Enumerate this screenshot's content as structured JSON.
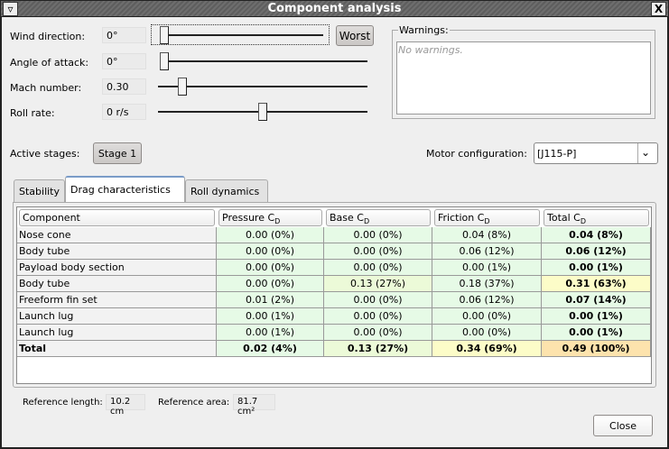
{
  "window": {
    "title": "Component analysis",
    "menu_icon": "triangle-down-icon",
    "close_icon": "x-icon"
  },
  "conditions": [
    {
      "label": "Wind direction:",
      "value": "0°",
      "slider_fraction": 0.0
    },
    {
      "label": "Angle of attack:",
      "value": "0°",
      "slider_fraction": 0.0
    },
    {
      "label": "Mach number:",
      "value": "0.30",
      "slider_fraction": 0.1
    },
    {
      "label": "Roll rate:",
      "value": "0 r/s",
      "slider_fraction": 0.5
    }
  ],
  "worst_button": "Worst",
  "warnings": {
    "label": "Warnings:",
    "text": "No warnings."
  },
  "stages": {
    "label": "Active stages:",
    "button": "Stage 1"
  },
  "motor": {
    "label": "Motor configuration:",
    "value": "[J115-P]"
  },
  "tabs": [
    {
      "label": "Stability",
      "active": false
    },
    {
      "label": "Drag characteristics",
      "active": true
    },
    {
      "label": "Roll dynamics",
      "active": false
    }
  ],
  "colors": {
    "g": "#e6fae6",
    "lg": "#ecfad8",
    "y": "#fcfcc8",
    "o": "#fde3ad",
    "name": "#f2f2f2"
  },
  "table": {
    "headers": [
      {
        "t": "Component",
        "s": ""
      },
      {
        "t": "Pressure C",
        "s": "D"
      },
      {
        "t": "Base C",
        "s": "D"
      },
      {
        "t": "Friction C",
        "s": "D"
      },
      {
        "t": "Total C",
        "s": "D"
      }
    ],
    "rows": [
      {
        "name": "Nose cone",
        "cells": [
          [
            "0.00 (0%)",
            "g"
          ],
          [
            "0.00 (0%)",
            "g"
          ],
          [
            "0.04 (8%)",
            "g"
          ],
          [
            "0.04 (8%)",
            "g"
          ]
        ]
      },
      {
        "name": "Body tube",
        "cells": [
          [
            "0.00 (0%)",
            "g"
          ],
          [
            "0.00 (0%)",
            "g"
          ],
          [
            "0.06 (12%)",
            "g"
          ],
          [
            "0.06 (12%)",
            "g"
          ]
        ]
      },
      {
        "name": "Payload body section",
        "cells": [
          [
            "0.00 (0%)",
            "g"
          ],
          [
            "0.00 (0%)",
            "g"
          ],
          [
            "0.00 (1%)",
            "g"
          ],
          [
            "0.00 (1%)",
            "g"
          ]
        ]
      },
      {
        "name": "Body tube",
        "cells": [
          [
            "0.00 (0%)",
            "g"
          ],
          [
            "0.13 (27%)",
            "lg"
          ],
          [
            "0.18 (37%)",
            "g"
          ],
          [
            "0.31 (63%)",
            "y"
          ]
        ]
      },
      {
        "name": "Freeform fin set",
        "cells": [
          [
            "0.01 (2%)",
            "g"
          ],
          [
            "0.00 (0%)",
            "g"
          ],
          [
            "0.06 (12%)",
            "g"
          ],
          [
            "0.07 (14%)",
            "g"
          ]
        ]
      },
      {
        "name": "Launch lug",
        "cells": [
          [
            "0.00 (1%)",
            "g"
          ],
          [
            "0.00 (0%)",
            "g"
          ],
          [
            "0.00 (0%)",
            "g"
          ],
          [
            "0.00 (1%)",
            "g"
          ]
        ]
      },
      {
        "name": "Launch lug",
        "cells": [
          [
            "0.00 (1%)",
            "g"
          ],
          [
            "0.00 (0%)",
            "g"
          ],
          [
            "0.00 (0%)",
            "g"
          ],
          [
            "0.00 (1%)",
            "g"
          ]
        ]
      },
      {
        "name": "Total",
        "total": true,
        "cells": [
          [
            "0.02 (4%)",
            "g"
          ],
          [
            "0.13 (27%)",
            "lg"
          ],
          [
            "0.34 (69%)",
            "y"
          ],
          [
            "0.49 (100%)",
            "o"
          ]
        ]
      }
    ]
  },
  "reference": {
    "length_label": "Reference length:",
    "length": "10.2 cm",
    "area_label": "Reference area:",
    "area": "81.7 cm²"
  },
  "close_button": "Close"
}
